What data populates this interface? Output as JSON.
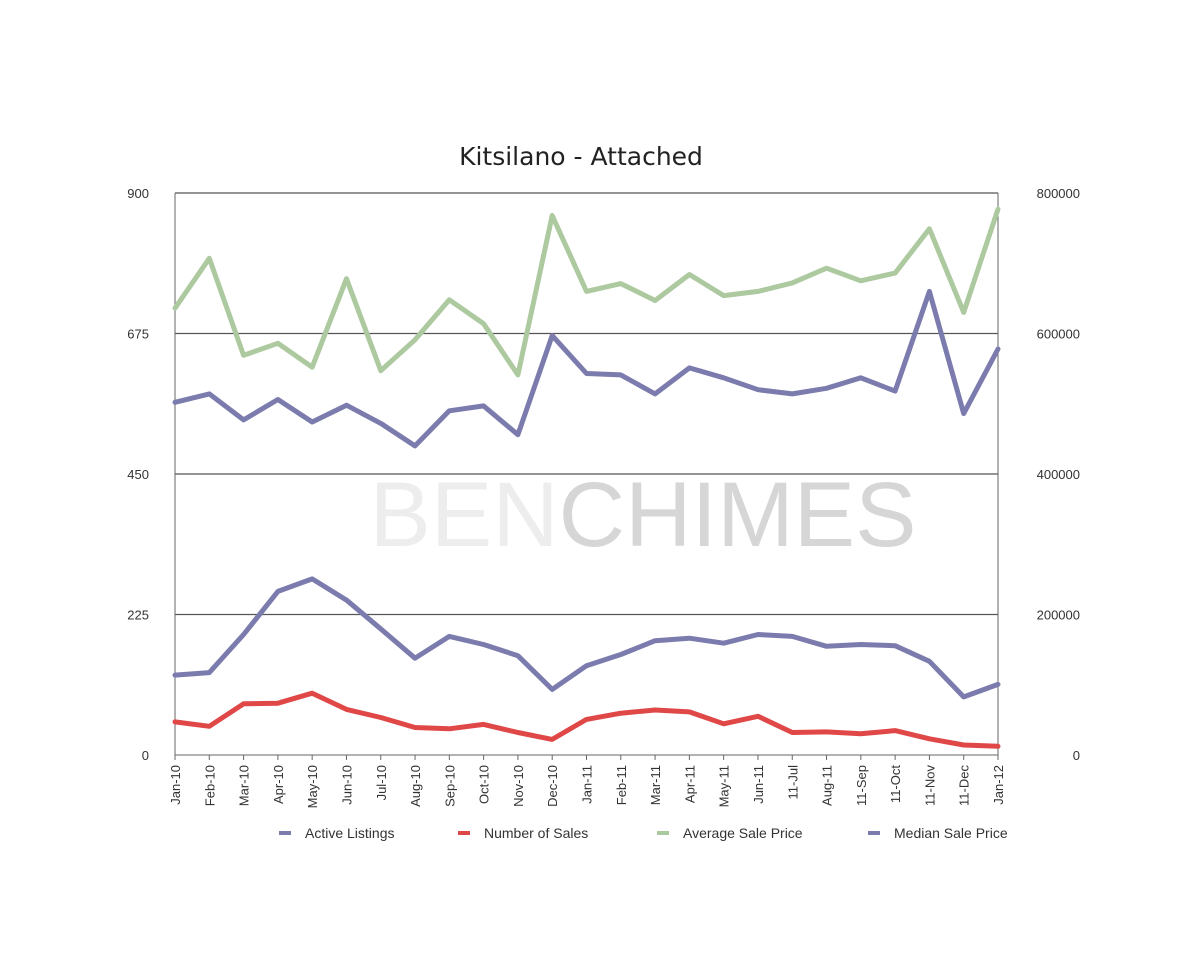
{
  "chart_data": {
    "type": "line",
    "title": "Kitsilano - Attached",
    "watermark": {
      "part1": "BEN",
      "part2": "CHIMES"
    },
    "categories": [
      "Jan-10",
      "Feb-10",
      "Mar-10",
      "Apr-10",
      "May-10",
      "Jun-10",
      "Jul-10",
      "Aug-10",
      "Sep-10",
      "Oct-10",
      "Nov-10",
      "Dec-10",
      "Jan-11",
      "Feb-11",
      "Mar-11",
      "Apr-11",
      "May-11",
      "Jun-11",
      "11-Jul",
      "Aug-11",
      "11-Sep",
      "11-Oct",
      "11-Nov",
      "11-Dec",
      "Jan-12"
    ],
    "y_left": {
      "ticks": [
        0,
        225,
        450,
        675,
        900
      ],
      "range": [
        0,
        900
      ]
    },
    "y_right": {
      "ticks": [
        0,
        200000,
        400000,
        600000,
        800000
      ],
      "range": [
        0,
        800000
      ]
    },
    "grid": true,
    "legend_position": "bottom",
    "series": [
      {
        "name": "Active Listings",
        "axis": "left",
        "color": "#7c7bae",
        "values": [
          128,
          132,
          193,
          262,
          282,
          248,
          202,
          155,
          190,
          177,
          159,
          105,
          143,
          161,
          183,
          187,
          179,
          193,
          190,
          174,
          177,
          175,
          150,
          93,
          113
        ]
      },
      {
        "name": "Number of Sales",
        "axis": "left",
        "color": "#e04848",
        "values": [
          53,
          46,
          82,
          83,
          99,
          73,
          60,
          44,
          42,
          49,
          36,
          25,
          57,
          67,
          72,
          69,
          50,
          62,
          36,
          37,
          34,
          39,
          26,
          16,
          14
        ]
      },
      {
        "name": "Average Sale Price",
        "axis": "right",
        "color": "#adc99f",
        "values": [
          636000,
          707000,
          569000,
          586000,
          552000,
          678000,
          547000,
          591000,
          648000,
          614000,
          541000,
          768000,
          660000,
          671000,
          647000,
          684000,
          654000,
          660000,
          672000,
          693000,
          675000,
          686000,
          749000,
          630000,
          777000
        ]
      },
      {
        "name": "Median Sale Price",
        "axis": "right",
        "color": "#7c7bae",
        "values": [
          502000,
          514000,
          477000,
          506000,
          474000,
          498000,
          472000,
          440000,
          490000,
          497000,
          456000,
          597000,
          543000,
          541000,
          514000,
          551000,
          537000,
          520000,
          514000,
          522000,
          537000,
          518000,
          660000,
          486000,
          578000
        ]
      }
    ]
  }
}
